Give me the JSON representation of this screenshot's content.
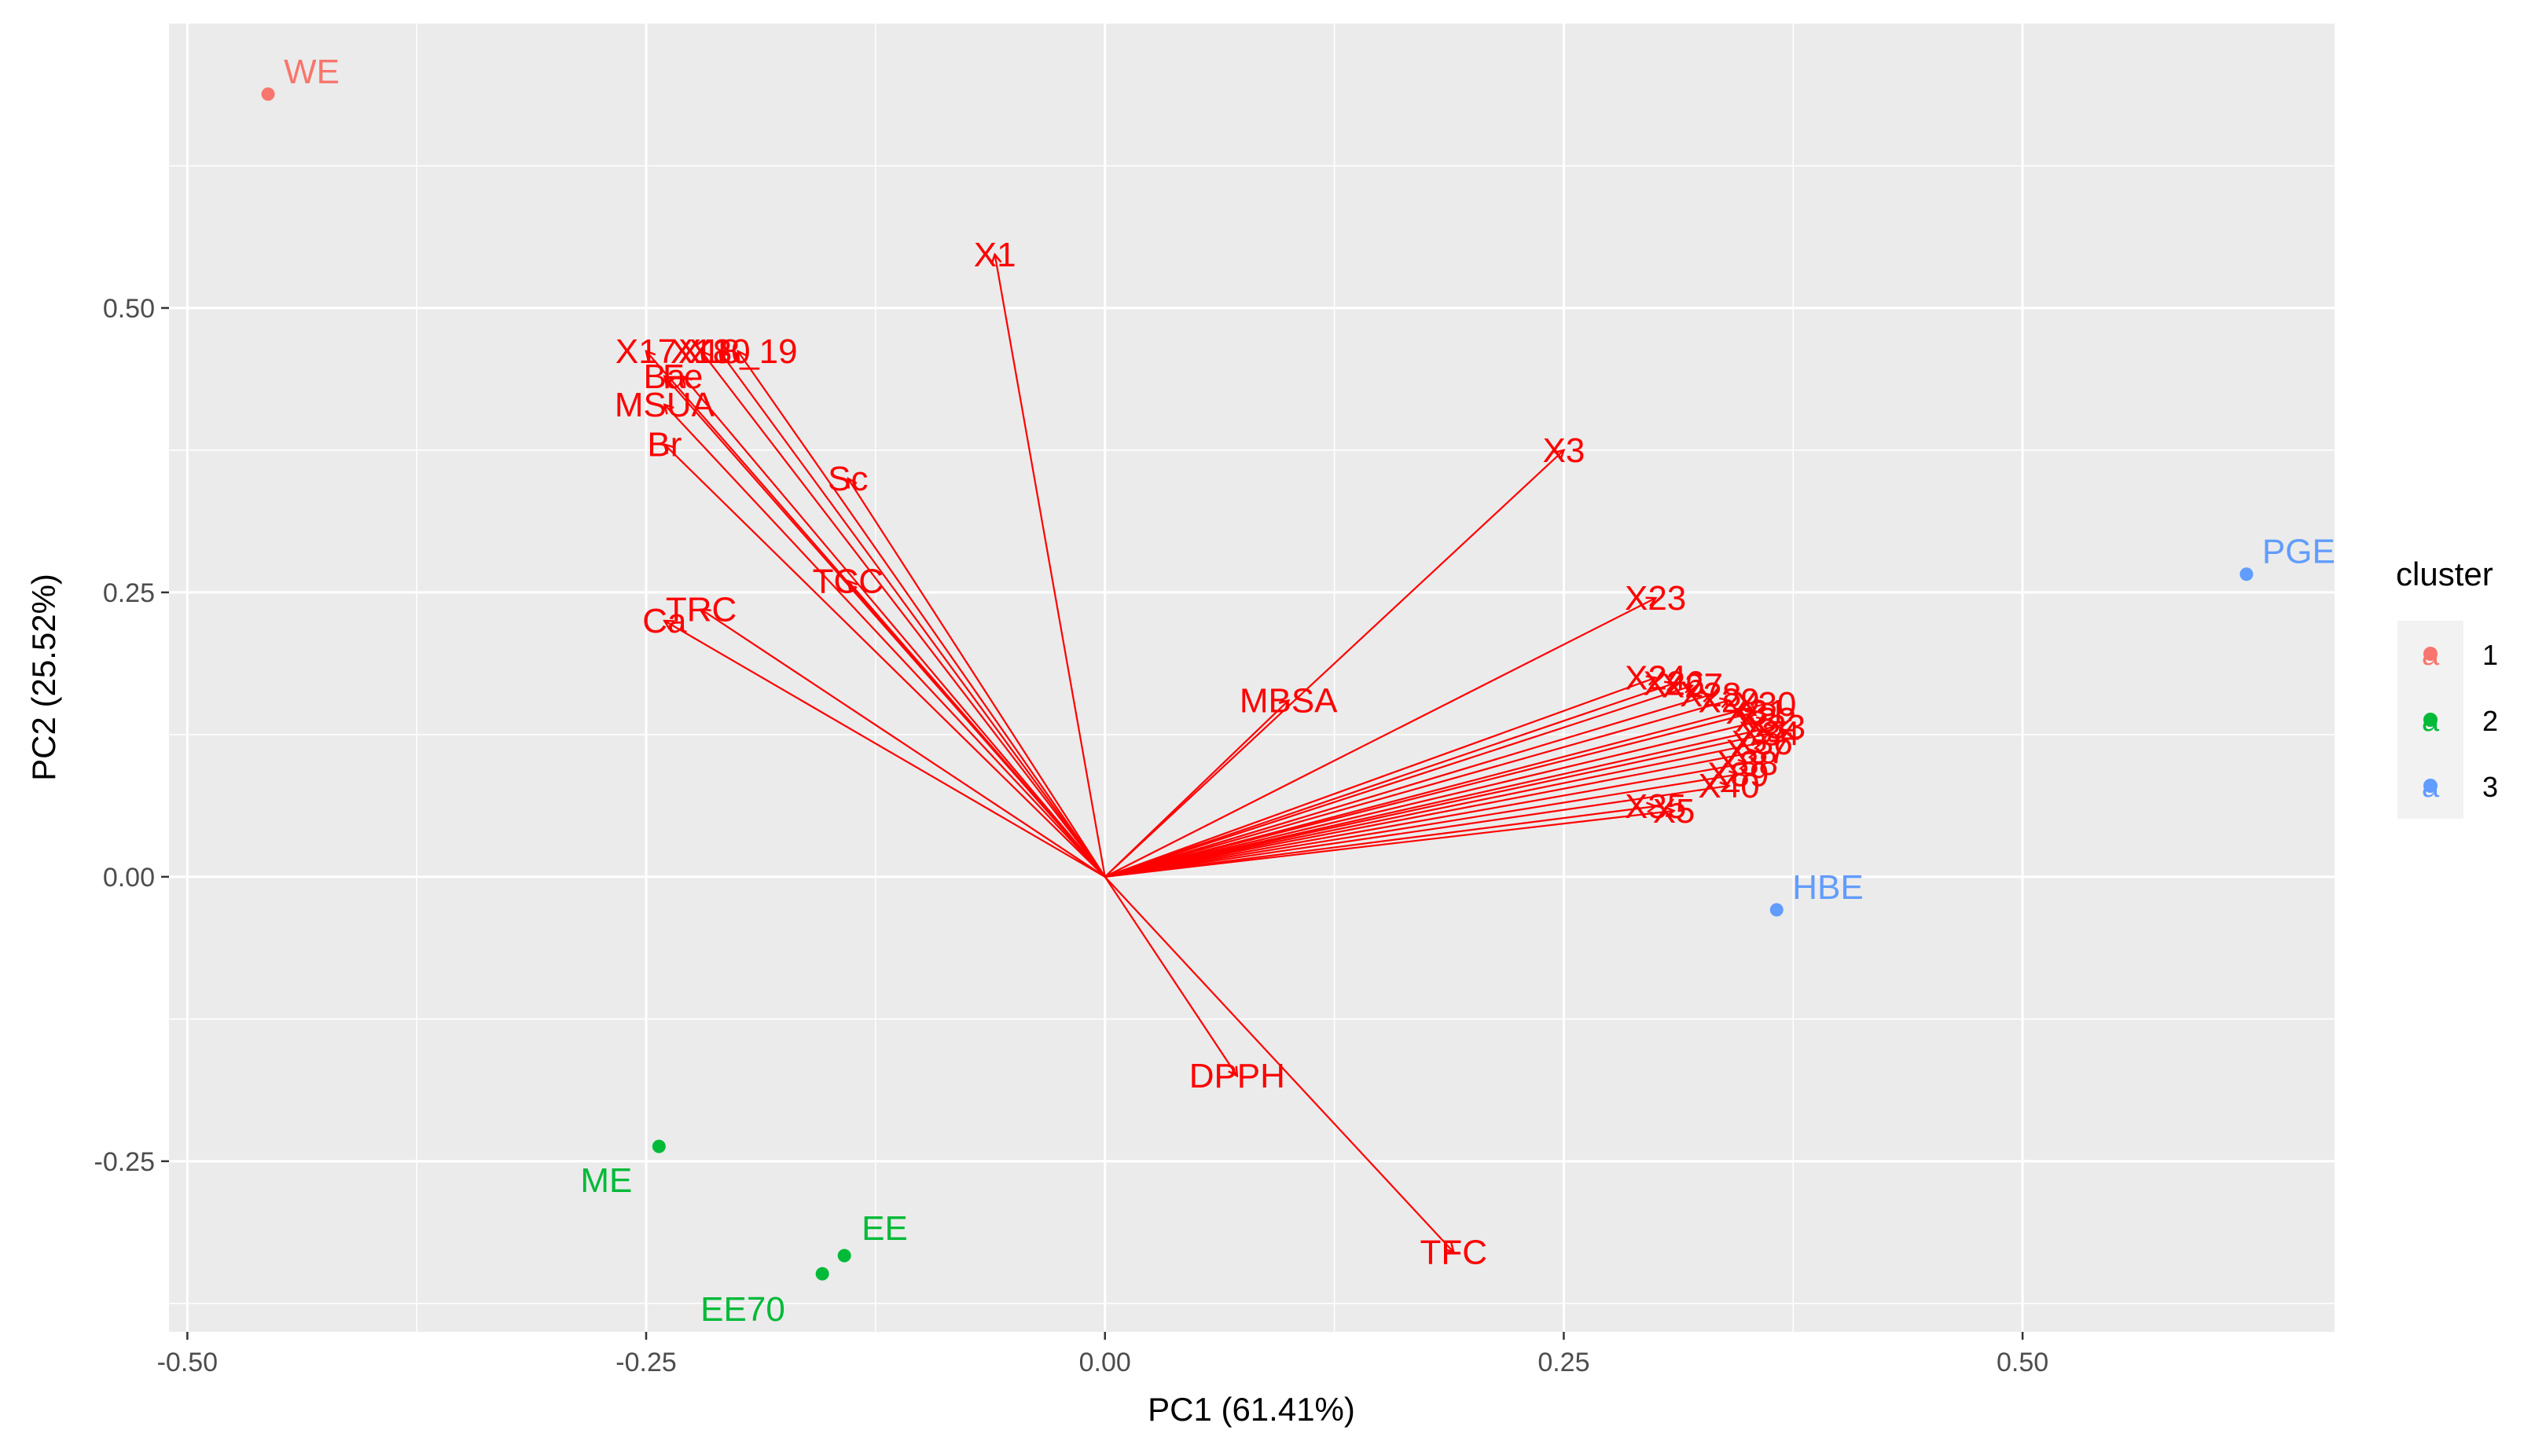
{
  "chart_data": {
    "type": "scatter",
    "subtype": "pca-biplot",
    "title": "",
    "xlabel": "PC1 (61.41%)",
    "ylabel": "PC2 (25.52%)",
    "xlim": [
      -0.51,
      0.67
    ],
    "ylim": [
      -0.4,
      0.75
    ],
    "x_ticks": [
      -0.5,
      -0.25,
      0.0,
      0.25,
      0.5
    ],
    "x_tick_labels": [
      "-0.50",
      "-0.25",
      "0.00",
      "0.25",
      "0.50"
    ],
    "y_ticks": [
      -0.25,
      0.0,
      0.25,
      0.5
    ],
    "y_tick_labels": [
      "-0.25",
      "0.00",
      "0.25",
      "0.50"
    ],
    "grid": true,
    "legend": {
      "title": "cluster",
      "position": "right",
      "entries": [
        {
          "label": "1",
          "color": "#F8766D",
          "key_glyph": "a"
        },
        {
          "label": "2",
          "color": "#00BA38",
          "key_glyph": "a"
        },
        {
          "label": "3",
          "color": "#619CFF",
          "key_glyph": "a"
        }
      ]
    },
    "arrow_color": "#FF0000",
    "points": [
      {
        "label": "WE",
        "x": -0.456,
        "y": 0.688,
        "cluster": "1"
      },
      {
        "label": "ME",
        "x": -0.243,
        "y": -0.237,
        "cluster": "2"
      },
      {
        "label": "EE",
        "x": -0.142,
        "y": -0.333,
        "cluster": "2"
      },
      {
        "label": "EE70",
        "x": -0.154,
        "y": -0.349,
        "cluster": "2"
      },
      {
        "label": "PGE",
        "x": 0.622,
        "y": 0.266,
        "cluster": "3"
      },
      {
        "label": "HBE",
        "x": 0.366,
        "y": -0.029,
        "cluster": "3"
      }
    ],
    "variables": [
      {
        "label": "X1",
        "x": -0.06,
        "y": 0.547
      },
      {
        "label": "X17",
        "x": -0.25,
        "y": 0.462
      },
      {
        "label": "X18",
        "x": -0.22,
        "y": 0.462
      },
      {
        "label": "X10",
        "x": -0.21,
        "y": 0.462
      },
      {
        "label": "X18_19",
        "x": -0.2,
        "y": 0.462
      },
      {
        "label": "Ba",
        "x": -0.24,
        "y": 0.44
      },
      {
        "label": "Fe",
        "x": -0.23,
        "y": 0.44
      },
      {
        "label": "MSUA",
        "x": -0.24,
        "y": 0.415
      },
      {
        "label": "Br",
        "x": -0.24,
        "y": 0.38
      },
      {
        "label": "Sc",
        "x": -0.14,
        "y": 0.35
      },
      {
        "label": "TCC",
        "x": -0.14,
        "y": 0.26
      },
      {
        "label": "TRC",
        "x": -0.22,
        "y": 0.235
      },
      {
        "label": "Ca",
        "x": -0.24,
        "y": 0.225
      },
      {
        "label": "X3",
        "x": 0.25,
        "y": 0.375
      },
      {
        "label": "X23",
        "x": 0.3,
        "y": 0.245
      },
      {
        "label": "MBSA",
        "x": 0.1,
        "y": 0.155
      },
      {
        "label": "X24",
        "x": 0.3,
        "y": 0.175
      },
      {
        "label": "X26",
        "x": 0.31,
        "y": 0.17
      },
      {
        "label": "X27",
        "x": 0.32,
        "y": 0.168
      },
      {
        "label": "X28",
        "x": 0.33,
        "y": 0.16
      },
      {
        "label": "X29",
        "x": 0.34,
        "y": 0.155
      },
      {
        "label": "X30",
        "x": 0.36,
        "y": 0.152
      },
      {
        "label": "X31",
        "x": 0.355,
        "y": 0.145
      },
      {
        "label": "X32",
        "x": 0.36,
        "y": 0.138
      },
      {
        "label": "X33",
        "x": 0.365,
        "y": 0.132
      },
      {
        "label": "X34",
        "x": 0.362,
        "y": 0.126
      },
      {
        "label": "X36",
        "x": 0.358,
        "y": 0.118
      },
      {
        "label": "X37",
        "x": 0.355,
        "y": 0.11
      },
      {
        "label": "X38",
        "x": 0.35,
        "y": 0.1
      },
      {
        "label": "X39",
        "x": 0.345,
        "y": 0.09
      },
      {
        "label": "X40",
        "x": 0.34,
        "y": 0.08
      },
      {
        "label": "X35",
        "x": 0.3,
        "y": 0.062
      },
      {
        "label": "X5",
        "x": 0.31,
        "y": 0.058
      },
      {
        "label": "DPPH",
        "x": 0.072,
        "y": -0.175
      },
      {
        "label": "TFC",
        "x": 0.19,
        "y": -0.33
      }
    ]
  }
}
